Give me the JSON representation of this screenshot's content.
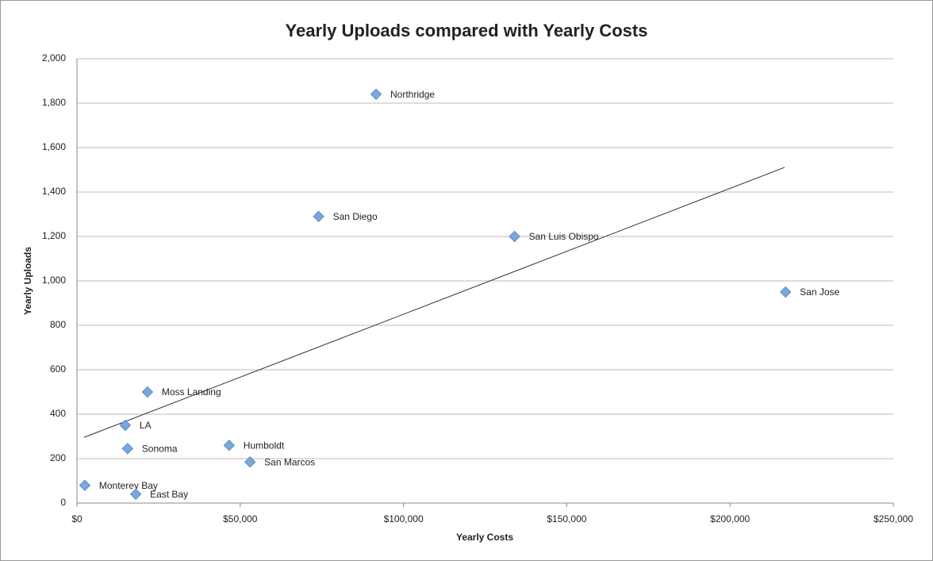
{
  "chart_data": {
    "type": "scatter",
    "title": "Yearly Uploads compared with Yearly Costs",
    "x_label": "Yearly Costs",
    "y_label": "Yearly Uploads",
    "x": [
      91600,
      74000,
      134000,
      217000,
      21600,
      14800,
      15500,
      46600,
      53000,
      2400,
      18000
    ],
    "y": [
      1840,
      1290,
      1200,
      950,
      500,
      350,
      245,
      260,
      185,
      80,
      40
    ],
    "point_labels": [
      "Northridge",
      "San Diego",
      "San Luis Obispo",
      "San Jose",
      "Moss Landing",
      "LA",
      "Sonoma",
      "Humboldt",
      "San Marcos",
      "Monterey Bay",
      "East Bay"
    ],
    "color": "#7ba7dc",
    "trendline": {
      "x": [
        2200,
        216700
      ],
      "y": [
        296,
        1511
      ],
      "color": "#333333"
    },
    "xlim": [
      0,
      250000
    ],
    "xticks": [
      {
        "value": 0,
        "label": "$0"
      },
      {
        "value": 50000,
        "label": "$50,000"
      },
      {
        "value": 100000,
        "label": "$100,000"
      },
      {
        "value": 150000,
        "label": "$150,000"
      },
      {
        "value": 200000,
        "label": "$200,000"
      },
      {
        "value": 250000,
        "label": "$250,000"
      }
    ],
    "ylim": [
      0,
      2000
    ],
    "yticks": [
      0,
      200,
      400,
      600,
      800,
      {
        "value": 1000,
        "label": "1,000"
      },
      {
        "value": 1200,
        "label": "1,200"
      },
      {
        "value": 1400,
        "label": "1,400"
      },
      {
        "value": 1600,
        "label": "1,600"
      },
      {
        "value": 1800,
        "label": "1,800"
      },
      {
        "value": 2000,
        "label": "2,000"
      }
    ],
    "grid": true
  }
}
